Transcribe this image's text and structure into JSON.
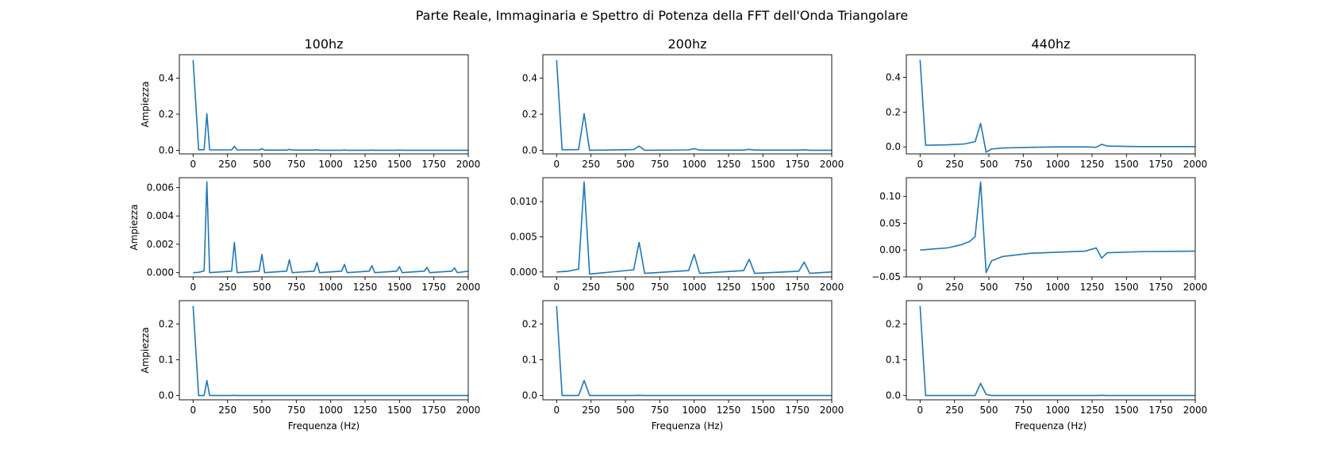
{
  "suptitle": "Parte Reale, Immaginaria e Spettro di Potenza della FFT dell'Onda Triangolare",
  "chart_data": [
    {
      "type": "line",
      "column_title": "100hz",
      "ylabel": "Ampiezza",
      "xlabel": "",
      "xlim": [
        -100,
        2000
      ],
      "ylim": [
        -0.02,
        0.53
      ],
      "xticks": [
        0,
        250,
        500,
        750,
        1000,
        1250,
        1500,
        1750,
        2000
      ],
      "yticks": [
        0.0,
        0.2,
        0.4
      ],
      "ytick_labels": [
        "0.0",
        "0.2",
        "0.4"
      ],
      "series": [
        {
          "x": [
            0,
            40,
            80,
            100,
            120,
            280,
            300,
            320,
            480,
            500,
            520,
            680,
            700,
            720,
            880,
            900,
            920,
            1080,
            1100,
            1120,
            1280,
            1300,
            1320,
            1480,
            1500,
            1520,
            1680,
            1700,
            1720,
            1880,
            1900,
            1920,
            2000
          ],
          "y": [
            0.5,
            0.003,
            0.003,
            0.203,
            0.002,
            0.002,
            0.023,
            0.002,
            0.002,
            0.009,
            0.001,
            0.001,
            0.005,
            0.001,
            0.001,
            0.003,
            0.0,
            0.0,
            0.002,
            0.0,
            0.0,
            0.001,
            0.0,
            0.0,
            0.001,
            0.0,
            0.0,
            0.0,
            0.0,
            0.0,
            0.0,
            0.0,
            0.0
          ]
        }
      ]
    },
    {
      "type": "line",
      "column_title": "200hz",
      "ylabel": "",
      "xlabel": "",
      "xlim": [
        -100,
        2000
      ],
      "ylim": [
        -0.02,
        0.53
      ],
      "xticks": [
        0,
        250,
        500,
        750,
        1000,
        1250,
        1500,
        1750,
        2000
      ],
      "yticks": [
        0.0,
        0.2,
        0.4
      ],
      "ytick_labels": [
        "0.0",
        "0.2",
        "0.4"
      ],
      "series": [
        {
          "x": [
            0,
            40,
            160,
            200,
            240,
            560,
            600,
            640,
            960,
            1000,
            1040,
            1360,
            1400,
            1440,
            1760,
            1800,
            1840,
            2000
          ],
          "y": [
            0.5,
            0.003,
            0.004,
            0.203,
            0.0,
            0.004,
            0.023,
            0.0,
            0.002,
            0.009,
            0.001,
            0.001,
            0.005,
            0.001,
            0.001,
            0.003,
            0.0,
            0.0
          ]
        }
      ]
    },
    {
      "type": "line",
      "column_title": "440hz",
      "ylabel": "",
      "xlabel": "",
      "xlim": [
        -100,
        2000
      ],
      "ylim": [
        -0.04,
        0.53
      ],
      "xticks": [
        0,
        250,
        500,
        750,
        1000,
        1250,
        1500,
        1750,
        2000
      ],
      "yticks": [
        0.0,
        0.2,
        0.4
      ],
      "ytick_labels": [
        "0.0",
        "0.2",
        "0.4"
      ],
      "series": [
        {
          "x": [
            0,
            40,
            200,
            320,
            400,
            440,
            480,
            520,
            600,
            800,
            1000,
            1200,
            1280,
            1320,
            1360,
            1600,
            2000
          ],
          "y": [
            0.5,
            0.01,
            0.012,
            0.017,
            0.03,
            0.135,
            -0.03,
            -0.012,
            -0.006,
            -0.002,
            0.0,
            0.0,
            -0.002,
            0.015,
            0.005,
            0.002,
            0.002
          ]
        }
      ]
    },
    {
      "type": "line",
      "column_title": "",
      "ylabel": "Ampiezza",
      "xlabel": "",
      "xlim": [
        -100,
        2000
      ],
      "ylim": [
        -0.0003,
        0.0067
      ],
      "xticks": [
        0,
        250,
        500,
        750,
        1000,
        1250,
        1500,
        1750,
        2000
      ],
      "yticks": [
        0.0,
        0.002,
        0.004,
        0.006
      ],
      "ytick_labels": [
        "0.000",
        "0.002",
        "0.004",
        "0.006"
      ],
      "series": [
        {
          "x": [
            0,
            40,
            80,
            100,
            120,
            280,
            300,
            320,
            480,
            500,
            520,
            680,
            700,
            720,
            880,
            900,
            920,
            1080,
            1100,
            1120,
            1280,
            1300,
            1320,
            1480,
            1500,
            1520,
            1680,
            1700,
            1720,
            1880,
            1900,
            1920,
            2000
          ],
          "y": [
            0.0,
            2e-05,
            0.00012,
            0.0064,
            0.0,
            0.0001,
            0.00213,
            0.0,
            0.0001,
            0.00128,
            0.0,
            0.0001,
            0.00091,
            0.0,
            0.0001,
            0.00071,
            0.0,
            0.0001,
            0.00058,
            0.0,
            0.0001,
            0.00049,
            0.0,
            0.0001,
            0.00042,
            0.0,
            0.0001,
            0.00037,
            0.0,
            0.0001,
            0.00033,
            0.0,
            0.0001
          ]
        }
      ]
    },
    {
      "type": "line",
      "column_title": "",
      "ylabel": "",
      "xlabel": "",
      "xlim": [
        -100,
        2000
      ],
      "ylim": [
        -0.0007,
        0.0134
      ],
      "xticks": [
        0,
        250,
        500,
        750,
        1000,
        1250,
        1500,
        1750,
        2000
      ],
      "yticks": [
        0.0,
        0.005,
        0.01
      ],
      "ytick_labels": [
        "0.000",
        "0.005",
        "0.010"
      ],
      "series": [
        {
          "x": [
            0,
            80,
            160,
            200,
            240,
            560,
            600,
            640,
            960,
            1000,
            1040,
            1360,
            1400,
            1440,
            1760,
            1800,
            1840,
            2000
          ],
          "y": [
            0.0,
            0.0001,
            0.0004,
            0.0128,
            -0.0003,
            0.0003,
            0.0042,
            -0.0002,
            0.0002,
            0.0025,
            -0.0002,
            0.0002,
            0.0018,
            -0.0002,
            0.0001,
            0.0014,
            -0.0002,
            0.0
          ]
        }
      ]
    },
    {
      "type": "line",
      "column_title": "",
      "ylabel": "",
      "xlabel": "",
      "xlim": [
        -100,
        2000
      ],
      "ylim": [
        -0.05,
        0.135
      ],
      "xticks": [
        0,
        250,
        500,
        750,
        1000,
        1250,
        1500,
        1750,
        2000
      ],
      "yticks": [
        -0.05,
        0.0,
        0.05,
        0.1
      ],
      "ytick_labels": [
        "−0.05",
        "0.00",
        "0.05",
        "0.10"
      ],
      "series": [
        {
          "x": [
            0,
            100,
            200,
            300,
            360,
            400,
            440,
            480,
            520,
            600,
            800,
            1000,
            1200,
            1280,
            1320,
            1360,
            1600,
            2000
          ],
          "y": [
            0.0,
            0.002,
            0.004,
            0.01,
            0.016,
            0.025,
            0.127,
            -0.042,
            -0.02,
            -0.012,
            -0.006,
            -0.004,
            -0.002,
            0.004,
            -0.015,
            -0.005,
            -0.003,
            -0.002
          ]
        }
      ]
    },
    {
      "type": "line",
      "column_title": "",
      "ylabel": "Ampiezza",
      "xlabel": "Frequenza (Hz)",
      "xlim": [
        -100,
        2000
      ],
      "ylim": [
        -0.012,
        0.265
      ],
      "xticks": [
        0,
        250,
        500,
        750,
        1000,
        1250,
        1500,
        1750,
        2000
      ],
      "yticks": [
        0.0,
        0.1,
        0.2
      ],
      "ytick_labels": [
        "0.0",
        "0.1",
        "0.2"
      ],
      "series": [
        {
          "x": [
            0,
            40,
            80,
            100,
            120,
            280,
            300,
            320,
            2000
          ],
          "y": [
            0.25,
            0.0,
            0.0,
            0.042,
            0.0,
            0.0,
            0.0006,
            0.0,
            0.0
          ]
        }
      ]
    },
    {
      "type": "line",
      "column_title": "",
      "ylabel": "",
      "xlabel": "Frequenza (Hz)",
      "xlim": [
        -100,
        2000
      ],
      "ylim": [
        -0.012,
        0.265
      ],
      "xticks": [
        0,
        250,
        500,
        750,
        1000,
        1250,
        1500,
        1750,
        2000
      ],
      "yticks": [
        0.0,
        0.1,
        0.2
      ],
      "ytick_labels": [
        "0.0",
        "0.1",
        "0.2"
      ],
      "series": [
        {
          "x": [
            0,
            40,
            160,
            200,
            240,
            560,
            600,
            640,
            2000
          ],
          "y": [
            0.25,
            0.0,
            0.0,
            0.042,
            0.0,
            0.0,
            0.0006,
            0.0,
            0.0
          ]
        }
      ]
    },
    {
      "type": "line",
      "column_title": "",
      "ylabel": "",
      "xlabel": "Frequenza (Hz)",
      "xlim": [
        -100,
        2000
      ],
      "ylim": [
        -0.012,
        0.265
      ],
      "xticks": [
        0,
        250,
        500,
        750,
        1000,
        1250,
        1500,
        1750,
        2000
      ],
      "yticks": [
        0.0,
        0.1,
        0.2
      ],
      "ytick_labels": [
        "0.0",
        "0.1",
        "0.2"
      ],
      "series": [
        {
          "x": [
            0,
            40,
            400,
            440,
            480,
            520,
            1280,
            1320,
            1360,
            2000
          ],
          "y": [
            0.25,
            0.0,
            0.0,
            0.034,
            0.003,
            0.0,
            0.0,
            0.0005,
            0.0,
            0.0
          ]
        }
      ]
    }
  ],
  "line_color": "#1f77b4"
}
